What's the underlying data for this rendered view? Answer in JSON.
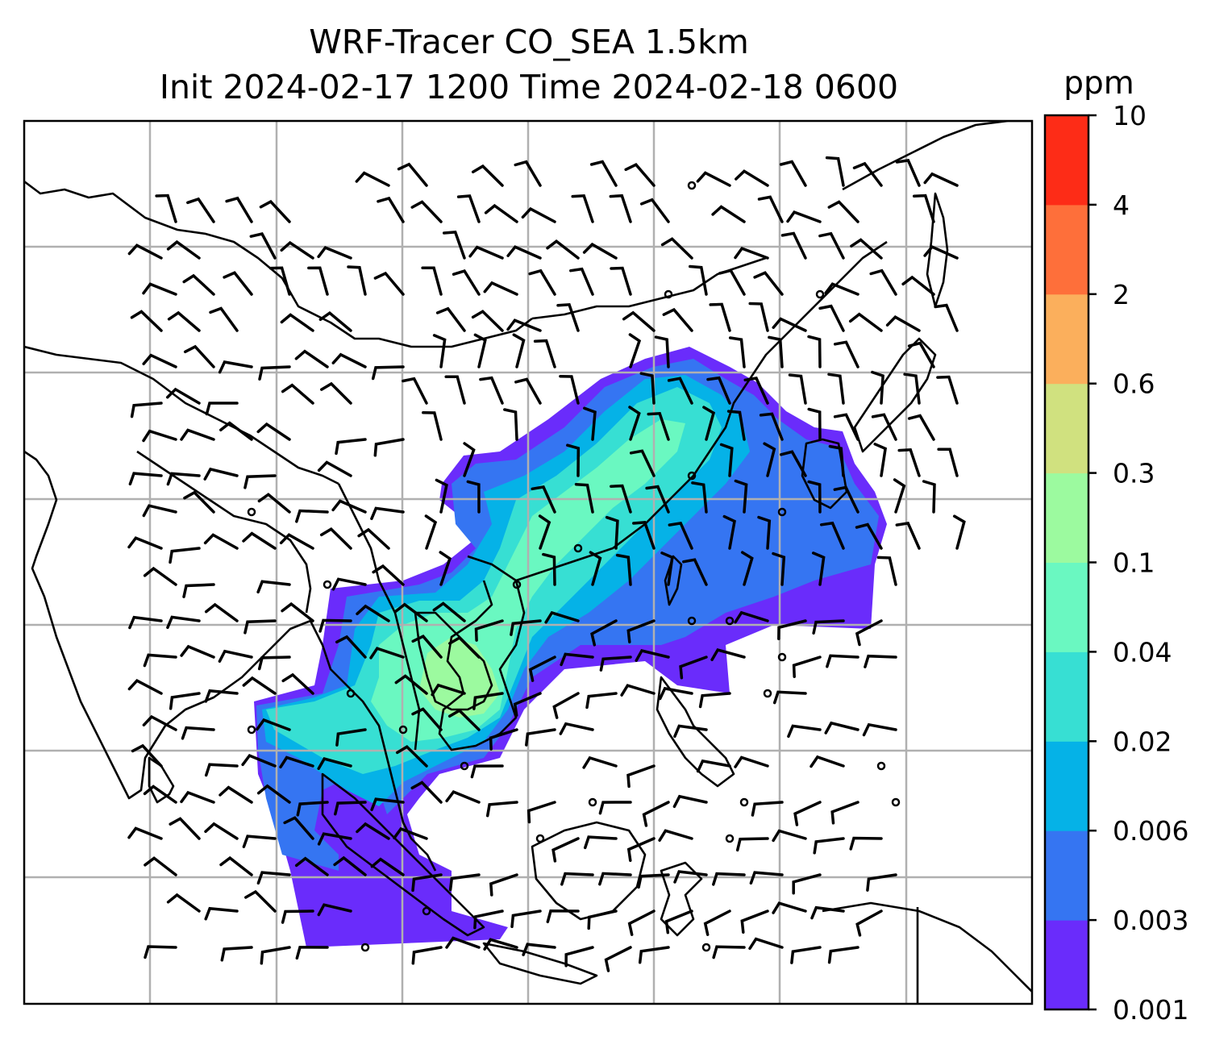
{
  "title_line1": "WRF-Tracer CO_SEA 1.5km",
  "title_line2": "Init 2024-02-17 1200 Time 2024-02-18 0600",
  "colorbar": {
    "unit": "ppm",
    "levels": [
      "0.001",
      "0.003",
      "0.006",
      "0.02",
      "0.04",
      "0.1",
      "0.3",
      "0.6",
      "2",
      "4",
      "10"
    ],
    "colors": [
      "#6a2cfb",
      "#3575f2",
      "#05b2e7",
      "#37dfd3",
      "#6af8c1",
      "#9cfa9f",
      "#d0e17f",
      "#fbaf5c",
      "#fe6f3a",
      "#fd2c17"
    ]
  },
  "map": {
    "gridlines": true,
    "gridline_color": "#b0b0b0",
    "coastline_color": "#000000",
    "wind_barb_color": "#000000"
  }
}
